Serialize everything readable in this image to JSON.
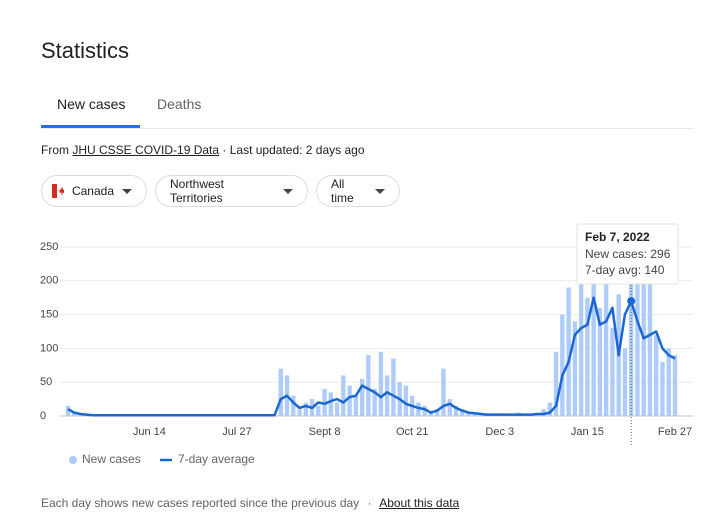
{
  "title": "Statistics",
  "tabs": [
    "New cases",
    "Deaths"
  ],
  "source": {
    "prefix": "From",
    "link": "JHU CSSE COVID-19 Data",
    "suffix": "· Last updated: 2 days ago"
  },
  "filters": [
    "Canada",
    "Northwest Territories",
    "All time"
  ],
  "tooltip": {
    "date": "Feb 7, 2022",
    "cases": "New cases: 296",
    "avg": "7-day avg: 140"
  },
  "footer": {
    "text": "Each day shows new cases reported since the previous day",
    "separator": "·",
    "link": "About this data"
  },
  "chart_data": {
    "type": "bar_line",
    "categories": [
      null,
      null,
      null,
      null,
      null,
      null,
      null,
      null,
      null,
      null,
      null,
      null,
      null,
      "Jun 14",
      null,
      null,
      null,
      null,
      null,
      null,
      null,
      null,
      null,
      null,
      null,
      null,
      null,
      "Jul 27",
      null,
      null,
      null,
      null,
      null,
      null,
      null,
      null,
      null,
      null,
      null,
      null,
      null,
      "Sept 8",
      null,
      null,
      null,
      null,
      null,
      null,
      null,
      null,
      null,
      null,
      null,
      null,
      null,
      "Oct 21",
      null,
      null,
      null,
      null,
      null,
      null,
      null,
      null,
      null,
      null,
      null,
      null,
      null,
      "Dec 3",
      null,
      null,
      null,
      null,
      null,
      null,
      null,
      null,
      null,
      null,
      null,
      null,
      null,
      "Jan 15",
      null,
      null,
      null,
      null,
      null,
      null,
      null,
      null,
      null,
      null,
      null,
      null,
      null,
      "Feb 27"
    ],
    "series": [
      {
        "name": "New cases",
        "color": "#aecbfa",
        "values": [
          15,
          5,
          3,
          2,
          0,
          0,
          0,
          0,
          0,
          0,
          0,
          0,
          0,
          0,
          0,
          0,
          0,
          0,
          0,
          0,
          0,
          0,
          0,
          0,
          0,
          0,
          0,
          0,
          0,
          0,
          0,
          0,
          0,
          0,
          70,
          60,
          30,
          10,
          20,
          25,
          15,
          40,
          35,
          20,
          60,
          45,
          30,
          55,
          90,
          40,
          95,
          60,
          85,
          50,
          45,
          30,
          20,
          15,
          5,
          10,
          70,
          25,
          15,
          10,
          5,
          3,
          2,
          2,
          0,
          1,
          0,
          0,
          5,
          2,
          0,
          3,
          10,
          20,
          95,
          150,
          190,
          140,
          200,
          175,
          250,
          160,
          210,
          130,
          180,
          100,
          200,
          296,
          230,
          200,
          120,
          80,
          100,
          90
        ]
      },
      {
        "name": "7-day average",
        "color": "#1967d2",
        "values": [
          10,
          5,
          3,
          2,
          1,
          1,
          1,
          1,
          1,
          1,
          1,
          1,
          1,
          1,
          1,
          1,
          1,
          1,
          1,
          1,
          1,
          1,
          1,
          1,
          1,
          1,
          1,
          1,
          1,
          1,
          1,
          1,
          1,
          1,
          25,
          30,
          20,
          12,
          15,
          12,
          20,
          18,
          22,
          25,
          20,
          28,
          30,
          45,
          40,
          35,
          28,
          35,
          30,
          25,
          18,
          15,
          12,
          10,
          5,
          8,
          15,
          18,
          12,
          8,
          5,
          4,
          3,
          2,
          2,
          2,
          2,
          2,
          2,
          2,
          2,
          3,
          3,
          5,
          15,
          60,
          80,
          120,
          130,
          135,
          175,
          135,
          140,
          160,
          90,
          150,
          170,
          140,
          115,
          120,
          125,
          100,
          90,
          85
        ]
      }
    ],
    "ylim": [
      0,
      250
    ],
    "yticks": [
      0,
      50,
      100,
      150,
      200,
      250
    ],
    "grid": true
  }
}
